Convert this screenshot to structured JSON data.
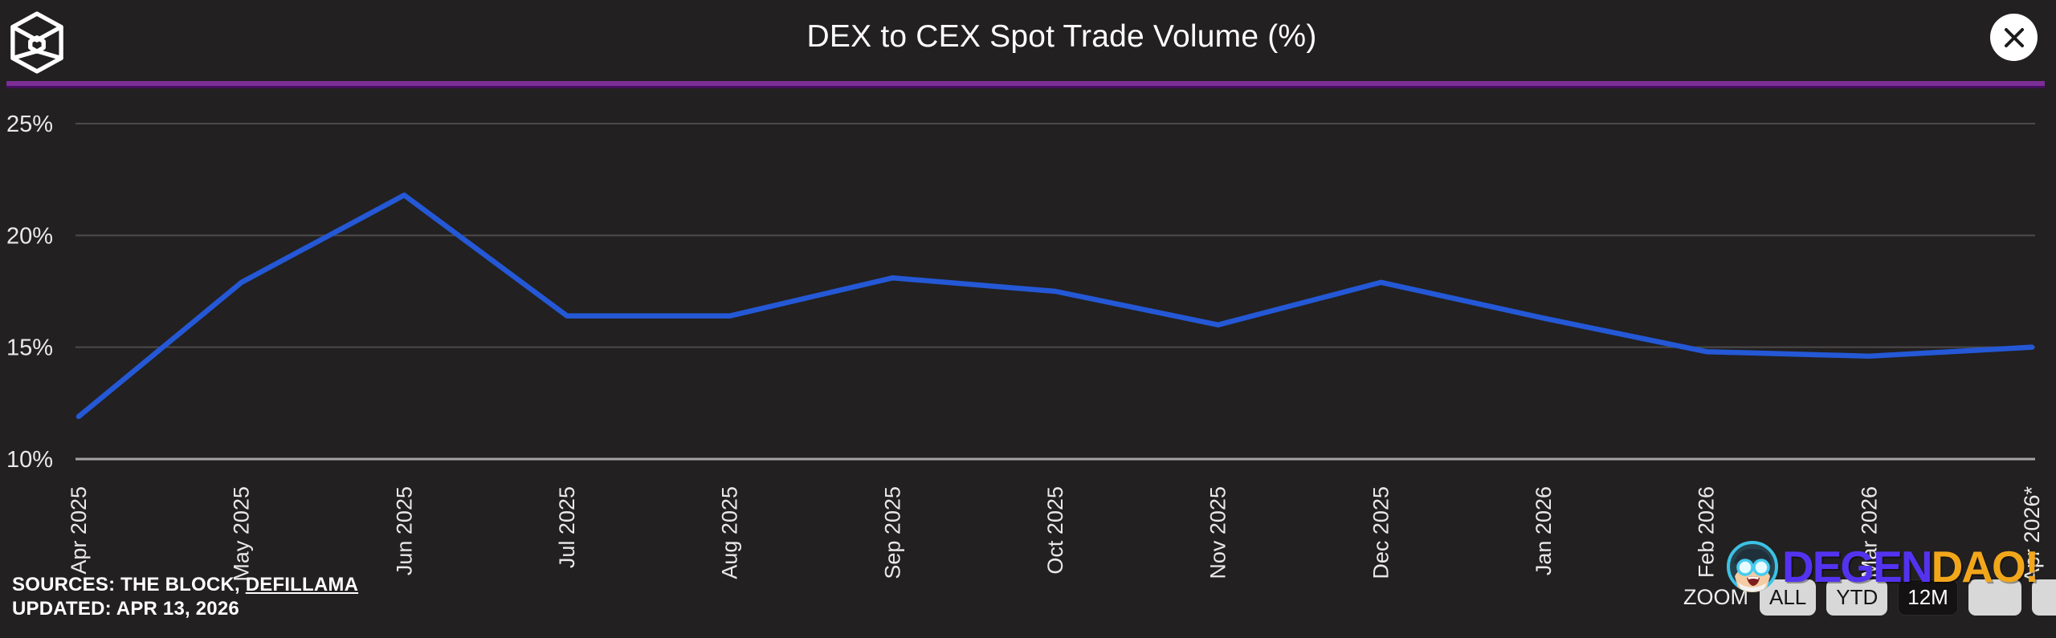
{
  "header": {
    "title": "DEX to CEX Spot Trade Volume (%)"
  },
  "chart_data": {
    "type": "line",
    "title": "DEX to CEX Spot Trade Volume (%)",
    "series_name": "DEX to CEX spot trade volume",
    "unit": "%",
    "categories": [
      "Apr 2025",
      "May 2025",
      "Jun 2025",
      "Jul 2025",
      "Aug 2025",
      "Sep 2025",
      "Oct 2025",
      "Nov 2025",
      "Dec 2025",
      "Jan 2026",
      "Feb 2026",
      "Mar 2026",
      "Apr 2026*"
    ],
    "values": [
      11.9,
      17.9,
      21.8,
      16.4,
      16.4,
      18.1,
      17.5,
      16.0,
      17.9,
      16.3,
      14.8,
      14.6,
      15.0
    ],
    "yticks": [
      25,
      20,
      15,
      10
    ],
    "ytick_labels": [
      "25%",
      "20%",
      "15%",
      "10%"
    ],
    "ylim": [
      10,
      25
    ],
    "grid": "horizontal",
    "legend": "none",
    "line_color": "#2458d6",
    "gridline_color": "#4c4a4a",
    "axis_line_color": "#a4a2a2",
    "label_color": "#eae8e8"
  },
  "footer": {
    "sources_prefix": "SOURCES: THE BLOCK, ",
    "sources_link": "DEFILLAMA",
    "updated": "UPDATED: APR 13, 2026"
  },
  "zoom_controls": {
    "label": "ZOOM",
    "buttons": [
      {
        "label": "ALL",
        "selected": false
      },
      {
        "label": "YTD",
        "selected": false
      },
      {
        "label": "12M",
        "selected": true
      },
      {
        "label": "",
        "selected": false
      },
      {
        "label": "",
        "selected": false
      }
    ]
  },
  "watermark": {
    "text_primary": "DEGEN",
    "text_secondary": "DAO!",
    "color_primary": "#5433f0",
    "color_secondary": "#f2a71b"
  },
  "colors": {
    "background": "#222020",
    "divider_purple": "#7c2e96",
    "divider_shadow": "#451060",
    "title_text": "#ffffff"
  }
}
